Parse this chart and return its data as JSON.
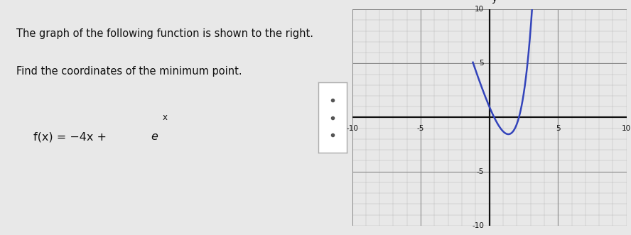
{
  "title_line1": "The graph of the following function is shown to the right.",
  "title_line2": "Find the coordinates of the minimum point.",
  "formula_prefix": "f(x) = −4x + ",
  "formula_e": "e",
  "formula_exp": "x",
  "xlim": [
    -10,
    10
  ],
  "ylim": [
    -10,
    10
  ],
  "curve_color": "#3344bb",
  "curve_linewidth": 1.8,
  "grid_minor_color": "#bbbbbb",
  "grid_major_color": "#888888",
  "background_color": "#e8e8e8",
  "left_panel_color": "#f0f0f0",
  "graph_panel_color": "#ffffff",
  "axis_color": "#111111",
  "text_color": "#111111",
  "x_plot_min": -1.2,
  "x_plot_max": 3.3,
  "divider_color": "#cccccc",
  "ellipsis_color": "#555555"
}
